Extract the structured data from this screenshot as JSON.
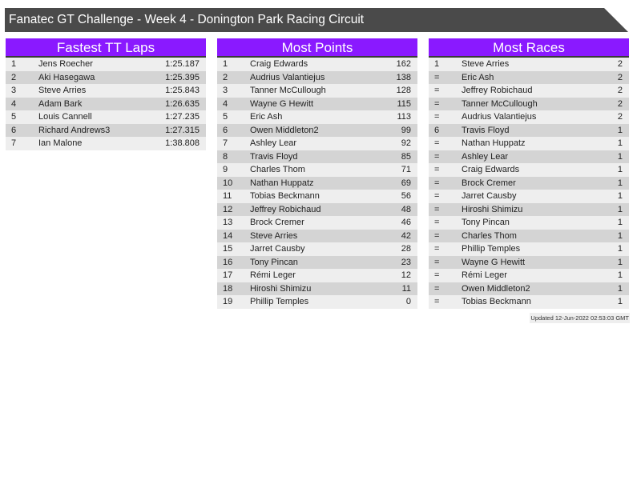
{
  "title": "Fanatec GT Challenge - Week 4 - Donington Park Racing Circuit",
  "panels": [
    {
      "heading": "Fastest TT Laps",
      "rows": [
        [
          "1",
          "Jens Roecher",
          "1:25.187"
        ],
        [
          "2",
          "Aki Hasegawa",
          "1:25.395"
        ],
        [
          "3",
          "Steve Arries",
          "1:25.843"
        ],
        [
          "4",
          "Adam Bark",
          "1:26.635"
        ],
        [
          "5",
          "Louis Cannell",
          "1:27.235"
        ],
        [
          "6",
          "Richard Andrews3",
          "1:27.315"
        ],
        [
          "7",
          "Ian Malone",
          "1:38.808"
        ]
      ]
    },
    {
      "heading": "Most Points",
      "rows": [
        [
          "1",
          "Craig Edwards",
          "162"
        ],
        [
          "2",
          "Audrius Valantiejus",
          "138"
        ],
        [
          "3",
          "Tanner McCullough",
          "128"
        ],
        [
          "4",
          "Wayne G Hewitt",
          "115"
        ],
        [
          "5",
          "Eric Ash",
          "113"
        ],
        [
          "6",
          "Owen Middleton2",
          "99"
        ],
        [
          "7",
          "Ashley Lear",
          "92"
        ],
        [
          "8",
          "Travis Floyd",
          "85"
        ],
        [
          "9",
          "Charles Thom",
          "71"
        ],
        [
          "10",
          "Nathan Huppatz",
          "69"
        ],
        [
          "11",
          "Tobias Beckmann",
          "56"
        ],
        [
          "12",
          "Jeffrey Robichaud",
          "48"
        ],
        [
          "13",
          "Brock Cremer",
          "46"
        ],
        [
          "14",
          "Steve Arries",
          "42"
        ],
        [
          "15",
          "Jarret Causby",
          "28"
        ],
        [
          "16",
          "Tony Pincan",
          "23"
        ],
        [
          "17",
          "Rémi Leger",
          "12"
        ],
        [
          "18",
          "Hiroshi Shimizu",
          "11"
        ],
        [
          "19",
          "Phillip Temples",
          "0"
        ]
      ]
    },
    {
      "heading": "Most Races",
      "rows": [
        [
          "1",
          "Steve Arries",
          "2"
        ],
        [
          "=",
          "Eric Ash",
          "2"
        ],
        [
          "=",
          "Jeffrey Robichaud",
          "2"
        ],
        [
          "=",
          "Tanner McCullough",
          "2"
        ],
        [
          "=",
          "Audrius Valantiejus",
          "2"
        ],
        [
          "6",
          "Travis Floyd",
          "1"
        ],
        [
          "=",
          "Nathan Huppatz",
          "1"
        ],
        [
          "=",
          "Ashley Lear",
          "1"
        ],
        [
          "=",
          "Craig Edwards",
          "1"
        ],
        [
          "=",
          "Brock Cremer",
          "1"
        ],
        [
          "=",
          "Jarret Causby",
          "1"
        ],
        [
          "=",
          "Hiroshi Shimizu",
          "1"
        ],
        [
          "=",
          "Tony Pincan",
          "1"
        ],
        [
          "=",
          "Charles Thom",
          "1"
        ],
        [
          "=",
          "Phillip Temples",
          "1"
        ],
        [
          "=",
          "Wayne G Hewitt",
          "1"
        ],
        [
          "=",
          "Rémi Leger",
          "1"
        ],
        [
          "=",
          "Owen Middleton2",
          "1"
        ],
        [
          "=",
          "Tobias Beckmann",
          "1"
        ]
      ]
    }
  ],
  "updated": "Updated 12-Jun-2022 02:53:03 GMT",
  "colors": {
    "header": "#8a19ff",
    "title_bar": "#4a4a4a"
  }
}
